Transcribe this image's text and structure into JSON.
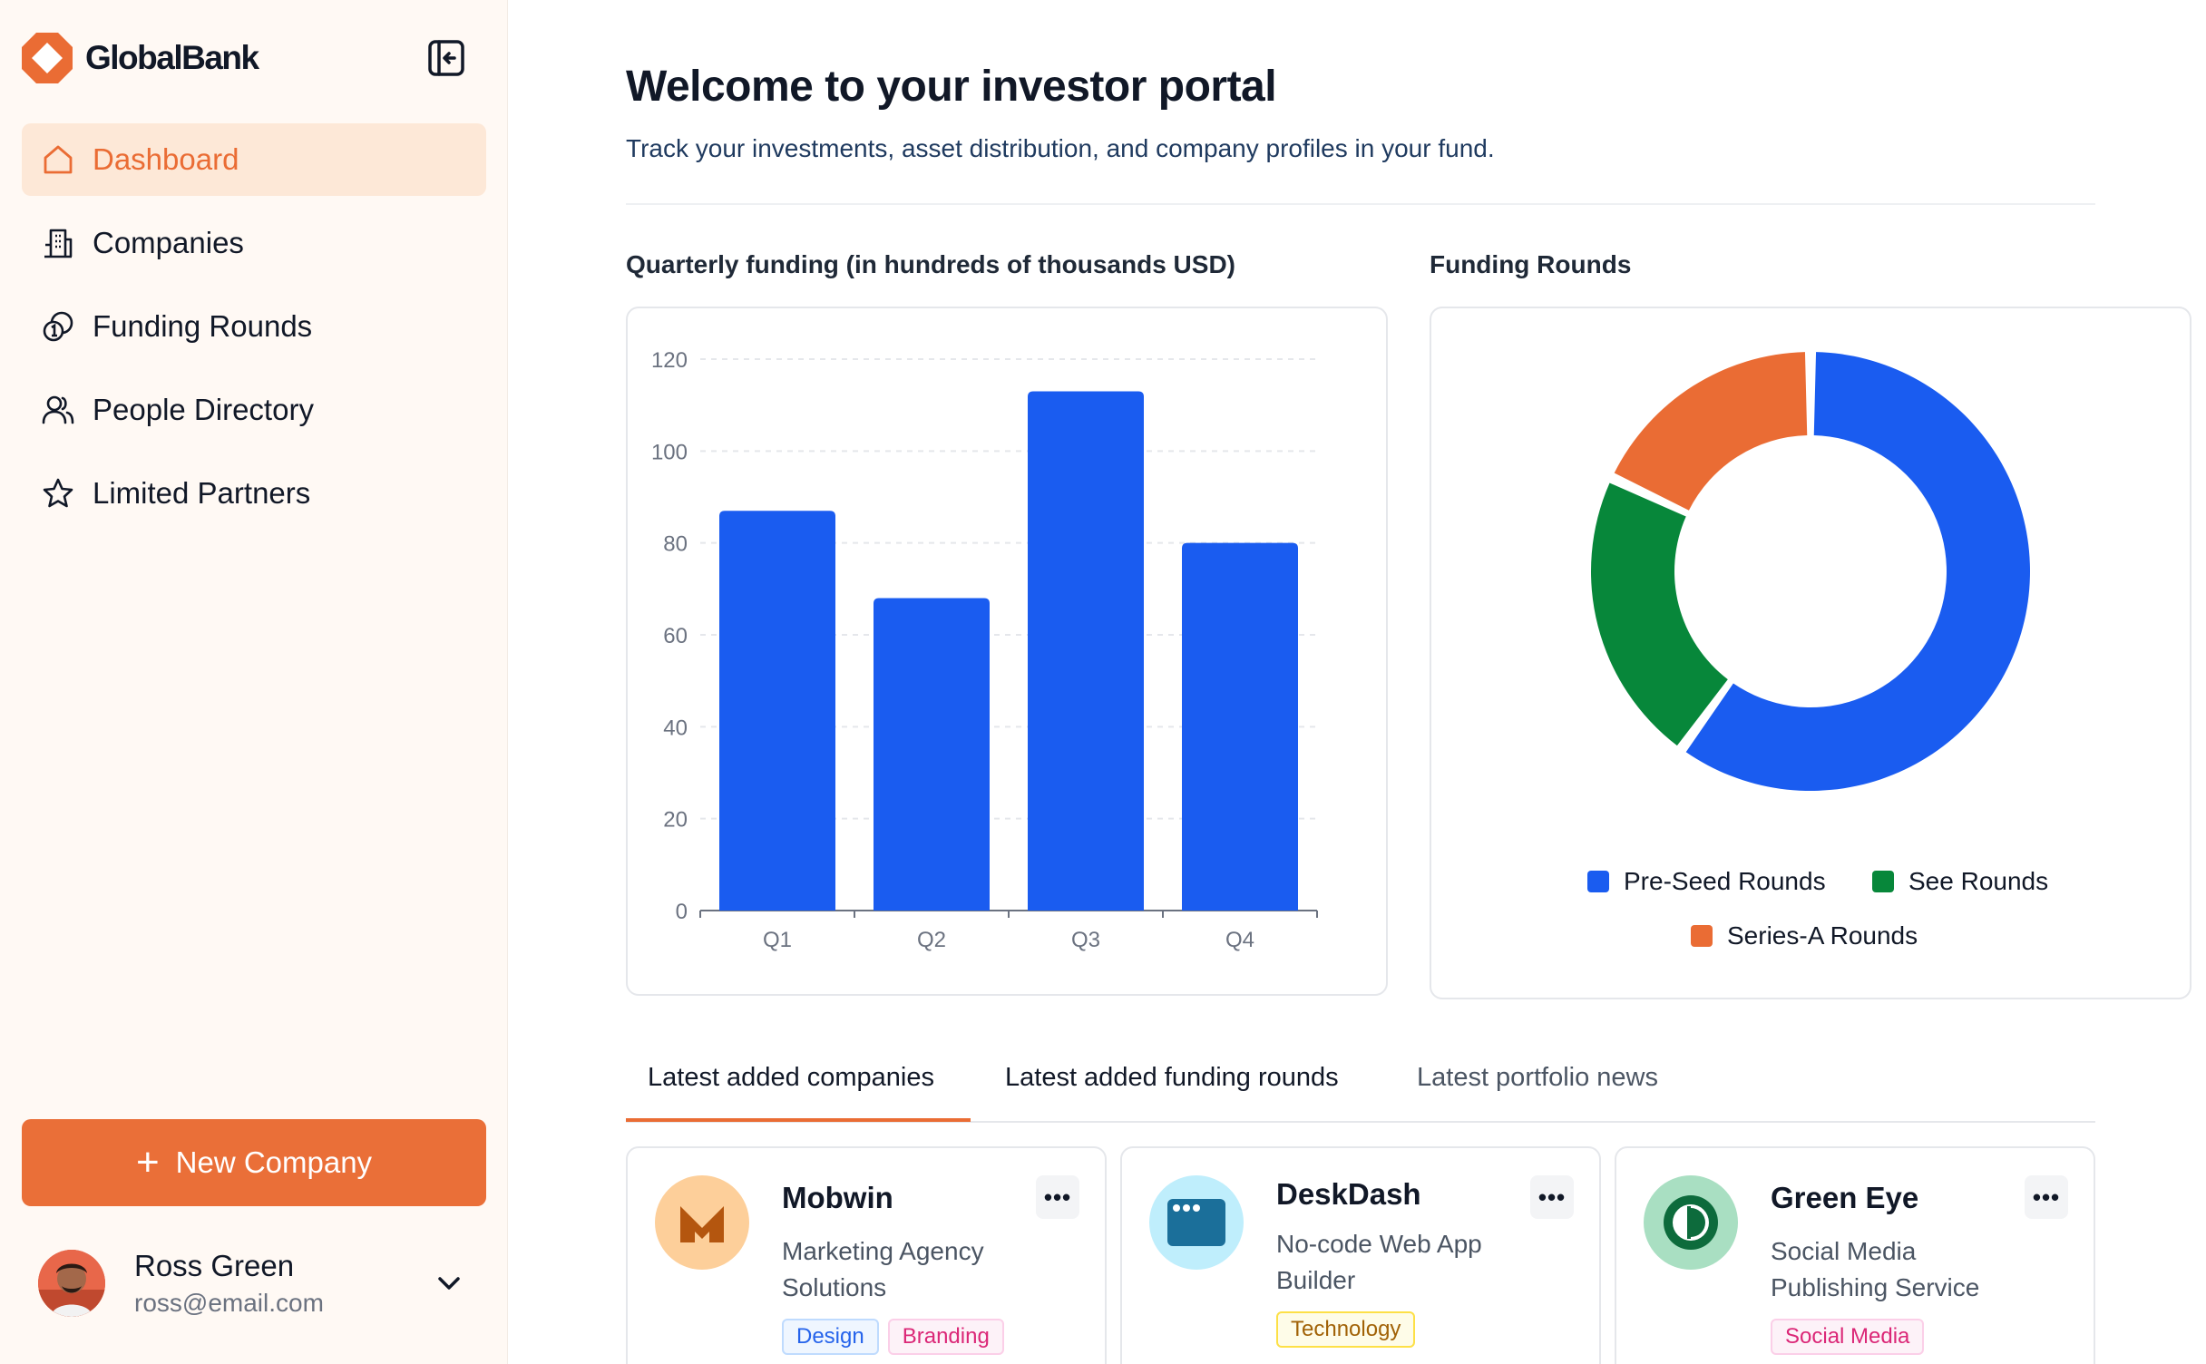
{
  "brand": {
    "name": "GlobalBank",
    "accent": "#ea6c34"
  },
  "sidebar": {
    "items": [
      {
        "label": "Dashboard",
        "icon": "home-icon",
        "active": true
      },
      {
        "label": "Companies",
        "icon": "building-icon"
      },
      {
        "label": "Funding Rounds",
        "icon": "coins-icon"
      },
      {
        "label": "People Directory",
        "icon": "users-icon"
      },
      {
        "label": "Limited Partners",
        "icon": "star-icon"
      }
    ],
    "new_button": "New Company",
    "user": {
      "name": "Ross Green",
      "email": "ross@email.com"
    }
  },
  "header": {
    "title": "Welcome to your investor portal",
    "subtitle": "Track your investments, asset distribution, and company profiles in your fund."
  },
  "chart_data": [
    {
      "type": "bar",
      "title": "Quarterly funding (in hundreds of thousands USD)",
      "categories": [
        "Q1",
        "Q2",
        "Q3",
        "Q4"
      ],
      "values": [
        87,
        68,
        113,
        80
      ],
      "ylim": [
        0,
        120
      ],
      "yticks": [
        0,
        20,
        40,
        60,
        80,
        100,
        120
      ],
      "color": "#1a5cf0",
      "grid": true
    },
    {
      "type": "pie",
      "title": "Funding Rounds",
      "donut": true,
      "labels": [
        "Pre-Seed Rounds",
        "See Rounds",
        "Series-A Rounds"
      ],
      "values": [
        60,
        22,
        18
      ],
      "colors": [
        "#1a5cf0",
        "#07873a",
        "#ea6c34"
      ],
      "legend": "bottom"
    }
  ],
  "tabs": [
    {
      "label": "Latest added companies",
      "active": true
    },
    {
      "label": "Latest added funding rounds"
    },
    {
      "label": "Latest portfolio news"
    }
  ],
  "companies": [
    {
      "name": "Mobwin",
      "desc": "Marketing Agency Solutions",
      "tags": [
        "Design",
        "Branding"
      ],
      "logo": "m-logo-icon",
      "logo_bg": "#fdcf9a"
    },
    {
      "name": "DeskDash",
      "desc": "No-code Web App Builder",
      "tags": [
        "Technology"
      ],
      "logo": "browser-logo-icon",
      "logo_bg": "#bfeefc"
    },
    {
      "name": "Green Eye",
      "desc": "Social Media Publishing Service",
      "tags": [
        "Social Media"
      ],
      "logo": "eye-logo-icon",
      "logo_bg": "#a9dfc2"
    }
  ],
  "more_label": "•••"
}
